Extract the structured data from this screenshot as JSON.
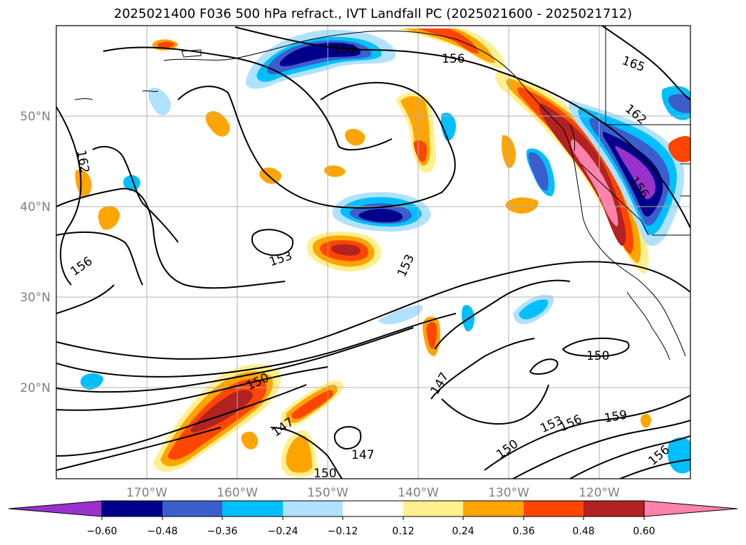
{
  "title": "2025021400 F036 500 hPa refract., IVT Landfall PC (2025021600 - 2025021712)",
  "map": {
    "lon_labels": [
      "170°W",
      "160°W",
      "150°W",
      "140°W",
      "130°W",
      "120°W"
    ],
    "lat_labels": [
      "50°N",
      "40°N",
      "30°N",
      "20°N"
    ],
    "contour_labels": [
      "159",
      "156",
      "165",
      "162",
      "162",
      "156",
      "156",
      "153",
      "153",
      "150",
      "147",
      "147",
      "150",
      "147",
      "150",
      "153",
      "156",
      "159",
      "150",
      "156"
    ]
  },
  "colorbar": {
    "colors": [
      "#9932cc",
      "#00008b",
      "#3a5fcd",
      "#00bfff",
      "#b0e2ff",
      "#ffffff",
      "#fff08f",
      "#ffa500",
      "#ff4500",
      "#b22222",
      "#ff82ab"
    ],
    "tick_labels": [
      "−0.60",
      "−0.48",
      "−0.36",
      "−0.24",
      "−0.12",
      "0.12",
      "0.24",
      "0.36",
      "0.48",
      "0.60"
    ]
  }
}
